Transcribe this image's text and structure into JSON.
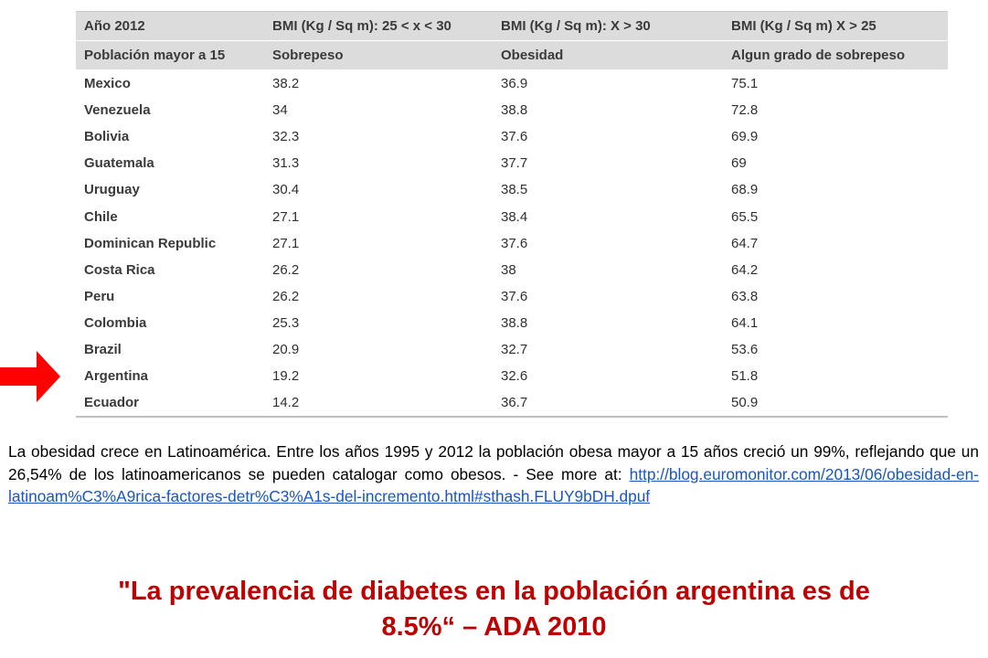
{
  "table": {
    "headers": [
      [
        "Año 2012",
        "BMI (Kg / Sq m): 25 < x < 30",
        "BMI (Kg / Sq m): X > 30",
        "BMI (Kg / Sq m) X > 25"
      ],
      [
        "Población mayor a 15",
        "Sobrepeso",
        "Obesidad",
        "Algun grado de sobrepeso"
      ]
    ],
    "rows": [
      [
        "Mexico",
        "38.2",
        "36.9",
        "75.1"
      ],
      [
        "Venezuela",
        "34",
        "38.8",
        "72.8"
      ],
      [
        "Bolivia",
        "32.3",
        "37.6",
        "69.9"
      ],
      [
        "Guatemala",
        "31.3",
        "37.7",
        "69"
      ],
      [
        "Uruguay",
        "30.4",
        "38.5",
        "68.9"
      ],
      [
        "Chile",
        "27.1",
        "38.4",
        "65.5"
      ],
      [
        "Dominican Republic",
        "27.1",
        "37.6",
        "64.7"
      ],
      [
        "Costa Rica",
        "26.2",
        "38",
        "64.2"
      ],
      [
        "Peru",
        "26.2",
        "37.6",
        "63.8"
      ],
      [
        "Colombia",
        "25.3",
        "38.8",
        "64.1"
      ],
      [
        "Brazil",
        "20.9",
        "32.7",
        "53.6"
      ],
      [
        "Argentina",
        "19.2",
        "32.6",
        "51.8"
      ],
      [
        "Ecuador",
        "14.2",
        "36.7",
        "50.9"
      ]
    ]
  },
  "arrow": {
    "icon": "right-arrow-icon",
    "color": "#ff0000",
    "target_row": "Argentina"
  },
  "caption": {
    "text": "La obesidad crece en Latinoamérica. Entre los años 1995 y 2012 la población obesa mayor a 15 años creció un 99%, reflejando que un 26,54% de los latinoamericanos se pueden catalogar como  obesos. - See more at: ",
    "link": "http://blog.euromonitor.com/2013/06/obesidad-en-latinoam%C3%A9rica-factores-detr%C3%A1s-del-incremento.html#sthash.FLUY9bDH.dpuf"
  },
  "quote": {
    "line1": "\"La prevalencia de diabetes en la población argentina es de",
    "line2": "8.5%“ – ADA 2010",
    "color": "#c00000"
  }
}
